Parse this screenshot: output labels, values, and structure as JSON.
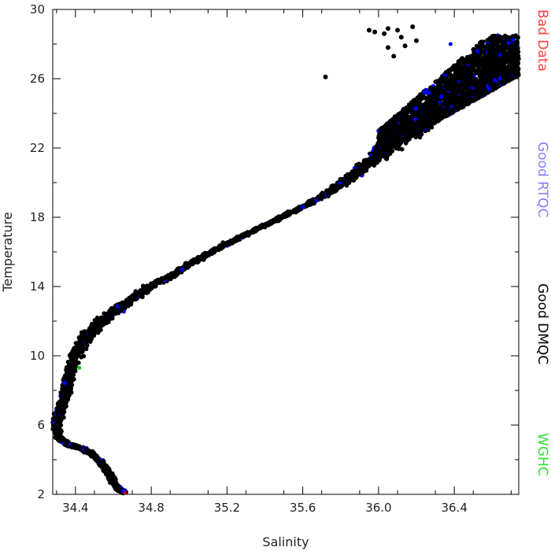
{
  "chart_data": {
    "type": "scatter",
    "title": "",
    "xlabel": "Salinity",
    "ylabel": "Temperature",
    "xlim": [
      34.28,
      36.74
    ],
    "ylim": [
      2,
      30
    ],
    "xticks": [
      34.4,
      34.8,
      35.2,
      35.6,
      36.0,
      36.4
    ],
    "xtick_labels": [
      "34.4",
      "34.8",
      "35.2",
      "35.6",
      "36.0",
      "36.4"
    ],
    "xminor_step": 0.2,
    "yticks": [
      2,
      6,
      10,
      14,
      18,
      22,
      26,
      30
    ],
    "ytick_labels": [
      "2",
      "6",
      "10",
      "14",
      "18",
      "22",
      "26",
      "30"
    ],
    "yminor_step": 2,
    "grid": false,
    "legend_placement": "right",
    "legend": [
      {
        "label": "Bad Data",
        "color": "#ff4040"
      },
      {
        "label": "Good RTQC",
        "color": "#8080ff"
      },
      {
        "label": "Good DMQC",
        "color": "#000000"
      },
      {
        "label": "WGHC",
        "color": "#33dd33"
      }
    ],
    "profile_main": [
      {
        "x": 34.66,
        "y": 2.1
      },
      {
        "x": 34.63,
        "y": 2.3
      },
      {
        "x": 34.6,
        "y": 2.7
      },
      {
        "x": 34.57,
        "y": 3.3
      },
      {
        "x": 34.53,
        "y": 3.9
      },
      {
        "x": 34.48,
        "y": 4.4
      },
      {
        "x": 34.42,
        "y": 4.7
      },
      {
        "x": 34.36,
        "y": 4.9
      },
      {
        "x": 34.31,
        "y": 5.3
      },
      {
        "x": 34.3,
        "y": 6.0
      },
      {
        "x": 34.31,
        "y": 6.6
      },
      {
        "x": 34.33,
        "y": 7.2
      },
      {
        "x": 34.35,
        "y": 8.0
      },
      {
        "x": 34.37,
        "y": 9.0
      },
      {
        "x": 34.4,
        "y": 10.0
      },
      {
        "x": 34.44,
        "y": 10.9
      },
      {
        "x": 34.5,
        "y": 11.6
      },
      {
        "x": 34.58,
        "y": 12.4
      },
      {
        "x": 34.66,
        "y": 13.0
      },
      {
        "x": 34.78,
        "y": 13.9
      },
      {
        "x": 34.9,
        "y": 14.6
      },
      {
        "x": 35.02,
        "y": 15.4
      },
      {
        "x": 35.15,
        "y": 16.2
      },
      {
        "x": 35.3,
        "y": 17.0
      },
      {
        "x": 35.45,
        "y": 17.8
      },
      {
        "x": 35.6,
        "y": 18.6
      },
      {
        "x": 35.75,
        "y": 19.5
      },
      {
        "x": 35.88,
        "y": 20.5
      },
      {
        "x": 36.0,
        "y": 21.6
      },
      {
        "x": 36.12,
        "y": 22.6
      },
      {
        "x": 36.22,
        "y": 23.4
      }
    ],
    "profile_width": [
      0.012,
      0.014,
      0.015,
      0.016,
      0.016,
      0.016,
      0.016,
      0.016,
      0.017,
      0.02,
      0.022,
      0.022,
      0.024,
      0.026,
      0.028,
      0.03,
      0.032,
      0.03,
      0.028,
      0.025,
      0.022,
      0.02,
      0.018,
      0.016,
      0.016,
      0.018,
      0.025,
      0.035,
      0.05,
      0.06,
      0.07
    ],
    "surface_cloud": {
      "x_range": [
        36.0,
        36.74
      ],
      "y_range": [
        22.0,
        28.5
      ],
      "upper_slope_note": "cloud bounded below by line from (36.0,21.6) to (36.74,26.8)"
    },
    "sparse_points": [
      {
        "x": 35.95,
        "y": 28.8
      },
      {
        "x": 35.98,
        "y": 28.7
      },
      {
        "x": 36.03,
        "y": 28.6
      },
      {
        "x": 36.05,
        "y": 28.9
      },
      {
        "x": 36.1,
        "y": 28.8
      },
      {
        "x": 36.12,
        "y": 28.4
      },
      {
        "x": 36.14,
        "y": 27.9
      },
      {
        "x": 36.08,
        "y": 27.3
      },
      {
        "x": 36.18,
        "y": 29.0
      },
      {
        "x": 36.05,
        "y": 27.8
      },
      {
        "x": 35.72,
        "y": 26.1
      },
      {
        "x": 36.2,
        "y": 28.2
      }
    ],
    "dmqc_color": "#000000",
    "rtqc_color": "#0000ff",
    "wghc_color": "#00cc00",
    "bad_color": "#ff0000"
  }
}
